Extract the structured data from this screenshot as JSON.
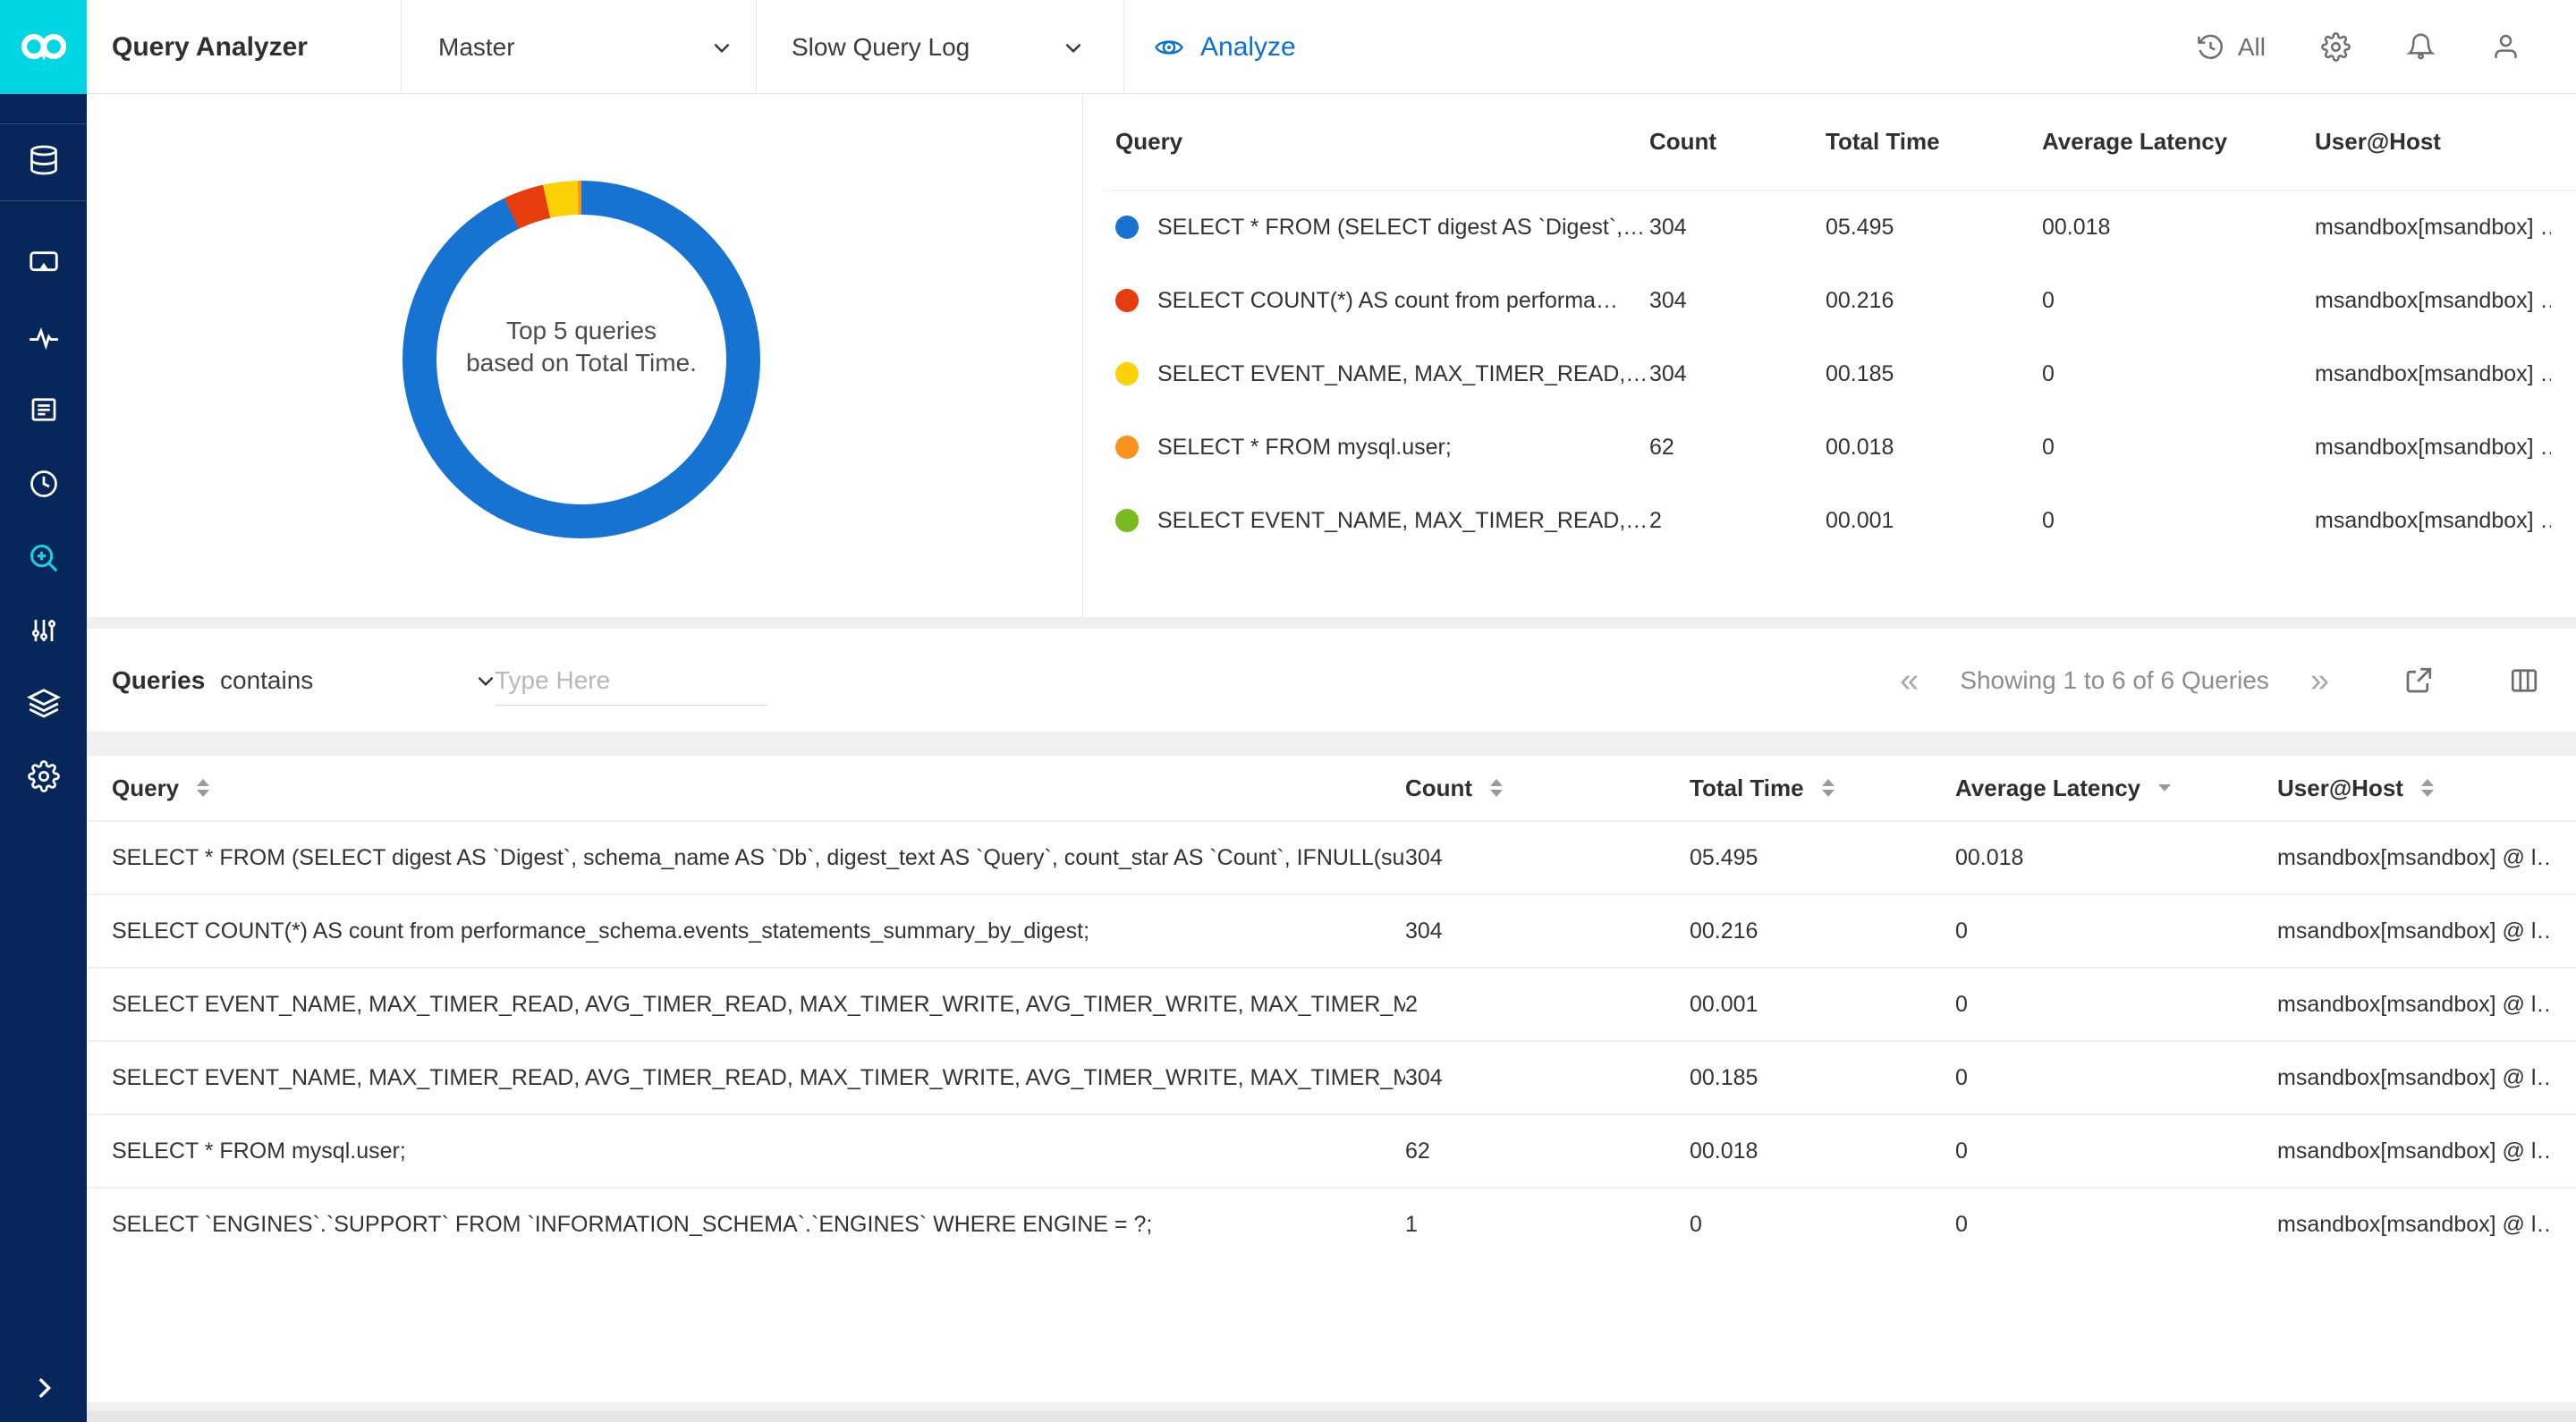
{
  "colors": {
    "brand_cyan": "#00d7e2",
    "sidebar_navy": "#07275a",
    "accent_blue": "#0e6fd3",
    "active_icon_cyan": "#19d2e0"
  },
  "header": {
    "title": "Query Analyzer",
    "server_selector": "Master",
    "log_selector": "Slow Query Log",
    "analyze": "Analyze",
    "history": "All"
  },
  "chart_data": {
    "type": "pie",
    "donut": true,
    "center_label": [
      "Top 5 queries",
      "based on Total Time."
    ],
    "series_name": "Total Time",
    "slices": [
      {
        "label": "SELECT * FROM (SELECT digest AS `Digest`,…",
        "value": 5.495,
        "color": "#1673d2"
      },
      {
        "label": "SELECT COUNT(*) AS count from performa…",
        "value": 0.216,
        "color": "#e73c0e"
      },
      {
        "label": "SELECT EVENT_NAME, MAX_TIMER_READ,…",
        "value": 0.185,
        "color": "#fcd108"
      },
      {
        "label": "SELECT * FROM mysql.user;",
        "value": 0.018,
        "color": "#f7941e"
      },
      {
        "label": "SELECT EVENT_NAME, MAX_TIMER_READ,…",
        "value": 0.001,
        "color": "#77bc1f"
      }
    ]
  },
  "top_table": {
    "columns": [
      "Query",
      "Count",
      "Total Time",
      "Average Latency",
      "User@Host"
    ],
    "rows": [
      {
        "color": "#1673d2",
        "query": "SELECT * FROM (SELECT digest AS `Digest`,…",
        "count": "304",
        "total_time": "05.495",
        "avg_latency": "00.018",
        "user_host": "msandbox[msandbox] …"
      },
      {
        "color": "#e73c0e",
        "query": "SELECT COUNT(*) AS count from performa…",
        "count": "304",
        "total_time": "00.216",
        "avg_latency": "0",
        "user_host": "msandbox[msandbox] …"
      },
      {
        "color": "#fcd108",
        "query": "SELECT EVENT_NAME, MAX_TIMER_READ,…",
        "count": "304",
        "total_time": "00.185",
        "avg_latency": "0",
        "user_host": "msandbox[msandbox] …"
      },
      {
        "color": "#f7941e",
        "query": "SELECT * FROM mysql.user;",
        "count": "62",
        "total_time": "00.018",
        "avg_latency": "0",
        "user_host": "msandbox[msandbox] …"
      },
      {
        "color": "#77bc1f",
        "query": "SELECT EVENT_NAME, MAX_TIMER_READ,…",
        "count": "2",
        "total_time": "00.001",
        "avg_latency": "0",
        "user_host": "msandbox[msandbox] …"
      }
    ]
  },
  "filter": {
    "label": "Queries",
    "operator": "contains",
    "placeholder": "Type Here"
  },
  "pagination": {
    "text": "Showing 1 to 6 of 6 Queries"
  },
  "bottom_table": {
    "columns": [
      {
        "label": "Query",
        "sort": "both"
      },
      {
        "label": "Count",
        "sort": "both"
      },
      {
        "label": "Total Time",
        "sort": "both"
      },
      {
        "label": "Average Latency",
        "sort": "desc"
      },
      {
        "label": "User@Host",
        "sort": "both"
      }
    ],
    "rows": [
      {
        "query": "SELECT * FROM (SELECT digest AS `Digest`, schema_name AS `Db`, digest_text AS `Query`, count_star AS `Count`, IFNULL(sum…",
        "count": "304",
        "total_time": "05.495",
        "avg_latency": "00.018",
        "user_host": "msandbox[msandbox] @ l…"
      },
      {
        "query": "SELECT COUNT(*) AS count from performance_schema.events_statements_summary_by_digest;",
        "count": "304",
        "total_time": "00.216",
        "avg_latency": "0",
        "user_host": "msandbox[msandbox] @ l…"
      },
      {
        "query": "SELECT EVENT_NAME, MAX_TIMER_READ, AVG_TIMER_READ, MAX_TIMER_WRITE, AVG_TIMER_WRITE, MAX_TIMER_MISC, …",
        "count": "2",
        "total_time": "00.001",
        "avg_latency": "0",
        "user_host": "msandbox[msandbox] @ l…"
      },
      {
        "query": "SELECT EVENT_NAME, MAX_TIMER_READ, AVG_TIMER_READ, MAX_TIMER_WRITE, AVG_TIMER_WRITE, MAX_TIMER_MISC, …",
        "count": "304",
        "total_time": "00.185",
        "avg_latency": "0",
        "user_host": "msandbox[msandbox] @ l…"
      },
      {
        "query": "SELECT * FROM mysql.user;",
        "count": "62",
        "total_time": "00.018",
        "avg_latency": "0",
        "user_host": "msandbox[msandbox] @ l…"
      },
      {
        "query": "SELECT `ENGINES`.`SUPPORT` FROM `INFORMATION_SCHEMA`.`ENGINES` WHERE ENGINE = ?;",
        "count": "1",
        "total_time": "0",
        "avg_latency": "0",
        "user_host": "msandbox[msandbox] @ l…"
      }
    ]
  }
}
